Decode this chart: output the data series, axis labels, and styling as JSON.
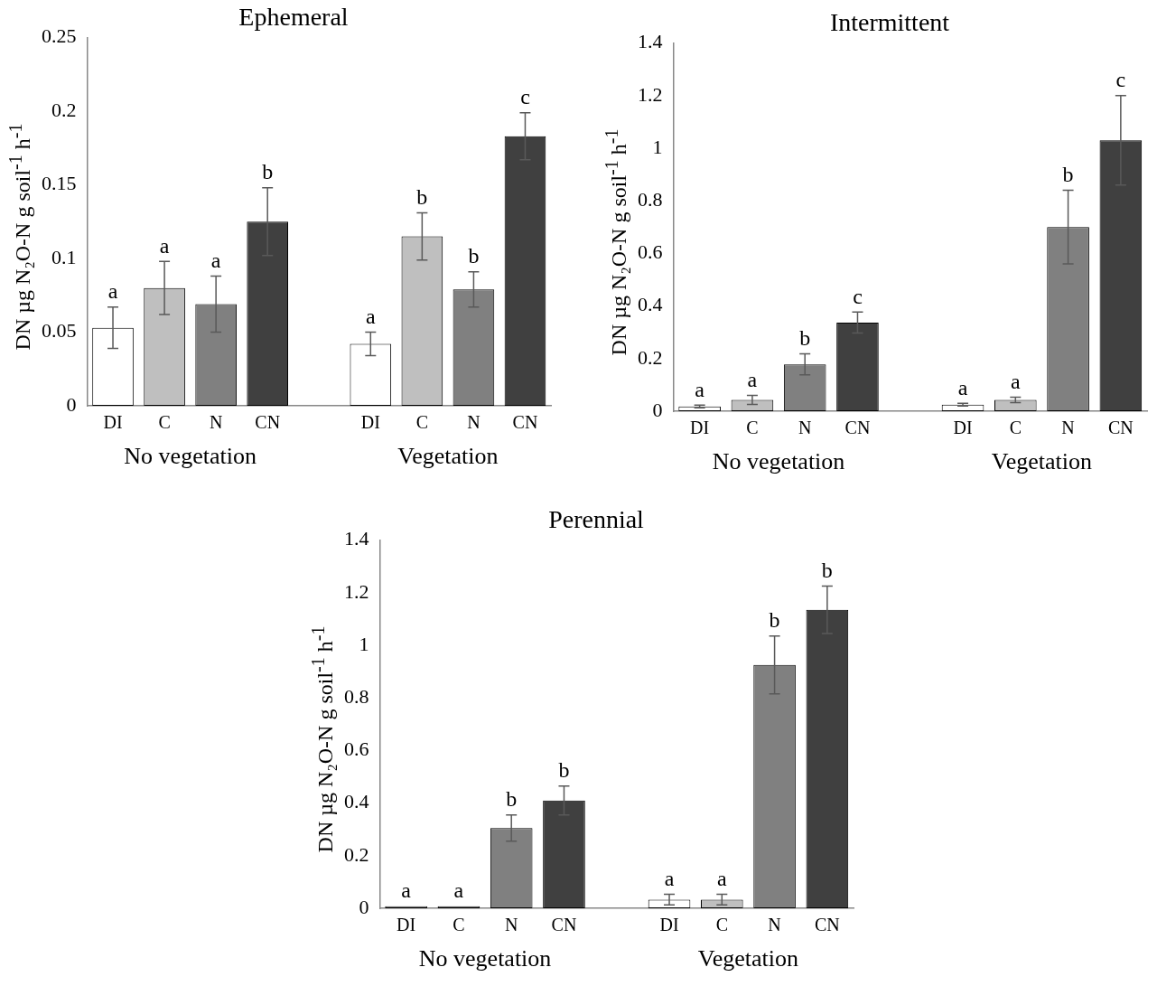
{
  "chart_data": [
    {
      "type": "bar",
      "title": "Ephemeral",
      "ylabel": "DN µg N₂O-N g soil$^{-1}$ h$^{-1}$",
      "categories": [
        "DI",
        "C",
        "N",
        "CN",
        null,
        "DI",
        "C",
        "N",
        "CN"
      ],
      "values": [
        0.053,
        0.08,
        0.069,
        0.125,
        null,
        0.042,
        0.115,
        0.079,
        0.183
      ],
      "errors": [
        0.014,
        0.018,
        0.019,
        0.023,
        null,
        0.008,
        0.016,
        0.012,
        0.016
      ],
      "colors": [
        "#ffffff",
        "#bfbfbf",
        "#808080",
        "#404040",
        "#ffffff",
        "#ffffff",
        "#bfbfbf",
        "#808080",
        "#404040"
      ],
      "value_labels": [
        "a",
        "a",
        "a",
        "b",
        null,
        "a",
        "b",
        "b",
        "c"
      ],
      "ylim": [
        0,
        0.25
      ],
      "yticks": [
        0,
        0.05,
        0.1,
        0.15,
        0.2,
        0.25
      ],
      "annotations": [
        "No vegetation",
        "Vegetation"
      ]
    },
    {
      "type": "bar",
      "title": "Intermittent",
      "ylabel": "DN µg N₂O-N g soil$^{-1}$ h$^{-1}$",
      "categories": [
        "DI",
        "C",
        "N",
        "CN",
        null,
        "DI",
        "C",
        "N",
        "CN"
      ],
      "values": [
        0.018,
        0.043,
        0.178,
        0.337,
        null,
        0.025,
        0.043,
        0.7,
        1.03
      ],
      "errors": [
        0.005,
        0.017,
        0.04,
        0.04,
        null,
        0.005,
        0.01,
        0.14,
        0.17
      ],
      "colors": [
        "#ffffff",
        "#bfbfbf",
        "#808080",
        "#404040",
        "#ffffff",
        "#ffffff",
        "#bfbfbf",
        "#808080",
        "#404040"
      ],
      "value_labels": [
        "a",
        "a",
        "b",
        "c",
        null,
        "a",
        "a",
        "b",
        "c"
      ],
      "ylim": [
        0,
        1.4
      ],
      "yticks": [
        0,
        0.2,
        0.4,
        0.6,
        0.8,
        1,
        1.2,
        1.4
      ],
      "annotations": [
        "No vegetation",
        "Vegetation"
      ]
    },
    {
      "type": "bar",
      "title": "Perennial",
      "ylabel": "DN µg N₂O-N g soil$^{-1}$ h$^{-1}$",
      "categories": [
        "DI",
        "C",
        "N",
        "CN",
        null,
        "DI",
        "C",
        "N",
        "CN"
      ],
      "values": [
        0.008,
        0.008,
        0.305,
        0.41,
        null,
        0.033,
        0.033,
        0.925,
        1.135
      ],
      "errors": [
        null,
        null,
        0.05,
        0.055,
        null,
        0.02,
        0.02,
        0.11,
        0.09
      ],
      "colors": [
        "#ffffff",
        "#bfbfbf",
        "#808080",
        "#404040",
        "#ffffff",
        "#ffffff",
        "#bfbfbf",
        "#808080",
        "#404040"
      ],
      "value_labels": [
        "a",
        "a",
        "b",
        "b",
        null,
        "a",
        "a",
        "b",
        "b"
      ],
      "ylim": [
        0,
        1.4
      ],
      "yticks": [
        0,
        0.2,
        0.4,
        0.6,
        0.8,
        1,
        1.2,
        1.4
      ],
      "annotations": [
        "No vegetation",
        "Vegetation"
      ]
    }
  ]
}
